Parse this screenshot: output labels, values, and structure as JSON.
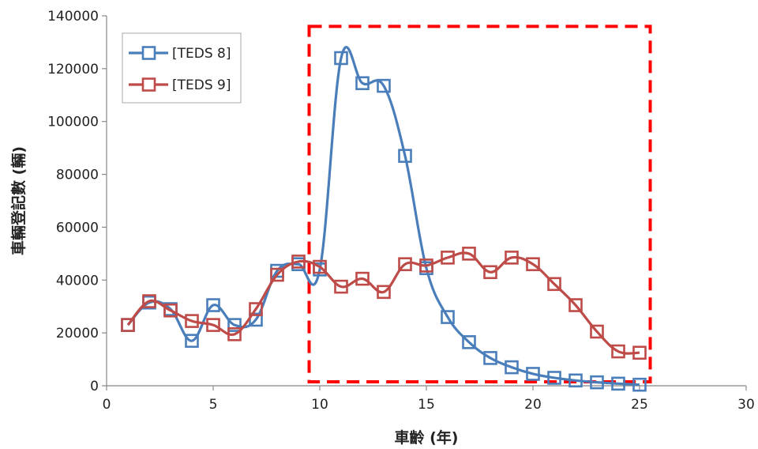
{
  "chart_data": {
    "type": "line",
    "title": "",
    "xlabel": "車齡 (年)",
    "ylabel": "車輛登記數 (輛)",
    "xlim": [
      0,
      30
    ],
    "ylim": [
      0,
      140000
    ],
    "x_ticks": [
      0,
      5,
      10,
      15,
      20,
      25,
      30
    ],
    "y_ticks": [
      0,
      20000,
      40000,
      60000,
      80000,
      100000,
      120000,
      140000
    ],
    "grid": false,
    "legend_position": "top-left",
    "series": [
      {
        "name": "[TEDS 8]",
        "color": "#4a7ebb",
        "marker": "square",
        "x": [
          1,
          2,
          3,
          4,
          5,
          6,
          7,
          8,
          9,
          10,
          11,
          12,
          13,
          14,
          15,
          16,
          17,
          18,
          19,
          20,
          21,
          22,
          23,
          24,
          25
        ],
        "values": [
          23000,
          31500,
          29000,
          17000,
          30500,
          23000,
          25000,
          43500,
          46000,
          44000,
          124000,
          114500,
          113500,
          87000,
          44500,
          26000,
          16500,
          10500,
          7000,
          4500,
          3000,
          2000,
          1300,
          800,
          400
        ]
      },
      {
        "name": "[TEDS 9]",
        "color": "#be4b48",
        "marker": "square",
        "x": [
          1,
          2,
          3,
          4,
          5,
          6,
          7,
          8,
          9,
          10,
          11,
          12,
          13,
          14,
          15,
          16,
          17,
          18,
          19,
          20,
          21,
          22,
          23,
          24,
          25
        ],
        "values": [
          23000,
          32000,
          28500,
          24500,
          23000,
          19500,
          29000,
          42000,
          47000,
          45000,
          37500,
          40500,
          35500,
          46000,
          45500,
          48500,
          50000,
          43000,
          48500,
          46000,
          38500,
          30500,
          20500,
          13000,
          12500
        ]
      }
    ],
    "annotations": [
      {
        "type": "dashed-rect",
        "color": "#ff0000",
        "x_range": [
          9.5,
          25.5
        ],
        "y_range": [
          1500,
          136000
        ]
      }
    ]
  }
}
